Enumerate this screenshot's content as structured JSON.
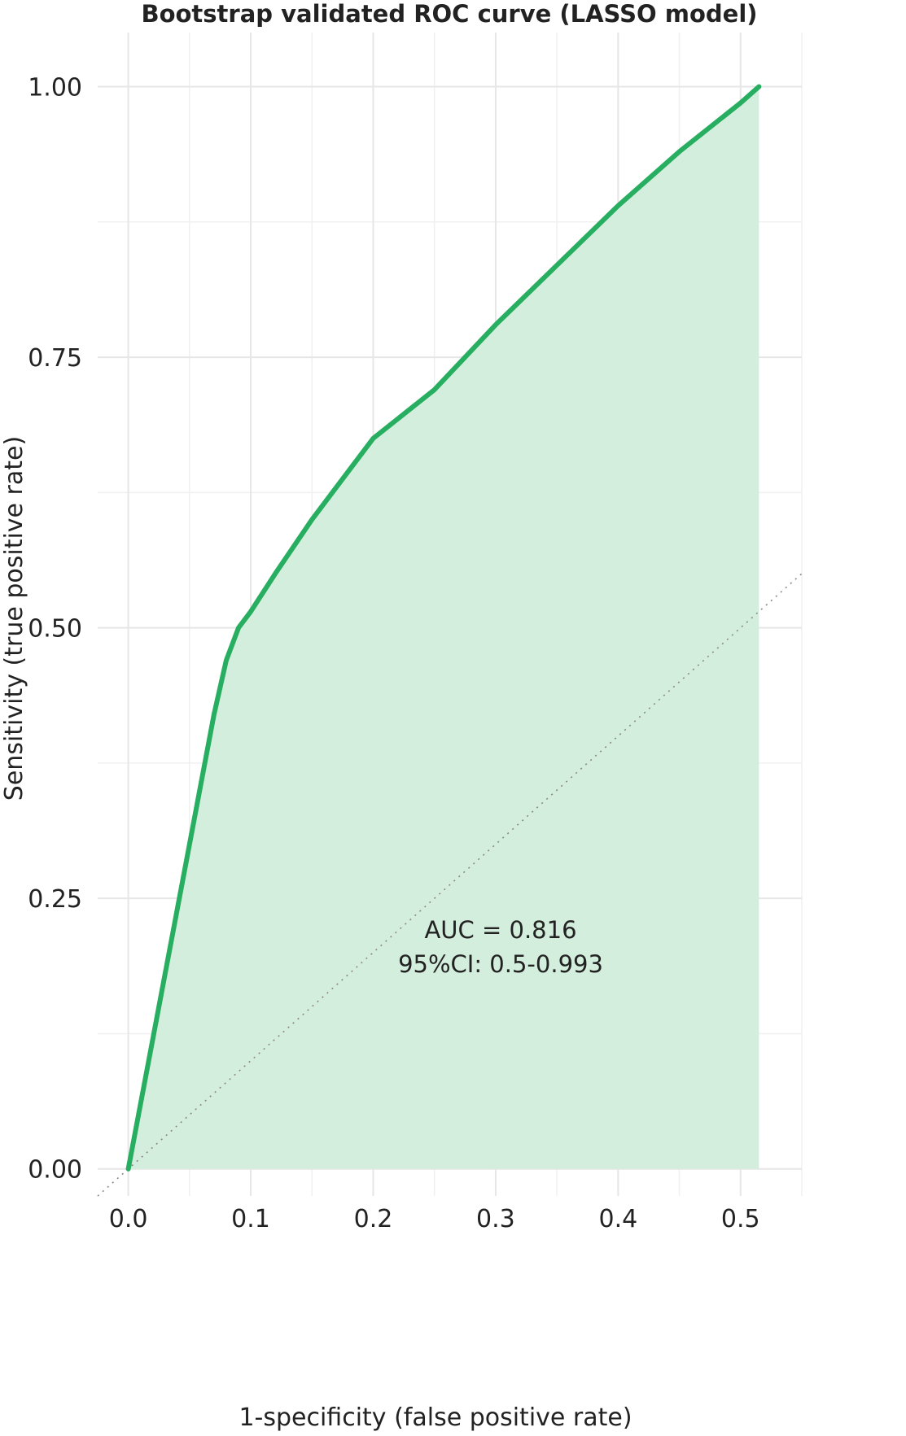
{
  "chart_data": {
    "type": "line",
    "title": "Bootstrap validated ROC curve (LASSO model)",
    "xlabel": "1-specificity (false positive rate)",
    "ylabel": "Sensitivity (true positive rate)",
    "xlim": [
      -0.025,
      0.55
    ],
    "ylim": [
      -0.025,
      1.05
    ],
    "x_ticks": [
      0.0,
      0.1,
      0.2,
      0.3,
      0.4,
      0.5
    ],
    "x_tick_labels": [
      "0.0",
      "0.1",
      "0.2",
      "0.3",
      "0.4",
      "0.5"
    ],
    "y_ticks": [
      0.0,
      0.25,
      0.5,
      0.75,
      1.0
    ],
    "y_tick_labels": [
      "0.00",
      "0.25",
      "0.50",
      "0.75",
      "1.00"
    ],
    "grid": true,
    "legend": "none",
    "series": [
      {
        "x": [
          0.0,
          0.01,
          0.02,
          0.03,
          0.04,
          0.05,
          0.06,
          0.07,
          0.08,
          0.09,
          0.1,
          0.12,
          0.15,
          0.18,
          0.2,
          0.25,
          0.3,
          0.35,
          0.4,
          0.45,
          0.5,
          0.515
        ],
        "y": [
          0.0,
          0.06,
          0.12,
          0.18,
          0.24,
          0.3,
          0.36,
          0.42,
          0.47,
          0.5,
          0.515,
          0.55,
          0.6,
          0.645,
          0.675,
          0.72,
          0.78,
          0.835,
          0.89,
          0.94,
          0.985,
          1.0
        ],
        "color": "#27ae60",
        "fill": "#d4eedd"
      }
    ],
    "reference_line": {
      "x": [
        -0.025,
        0.55
      ],
      "y": [
        -0.025,
        0.55
      ],
      "style": "dotted",
      "color": "#888888"
    },
    "annotations": [
      "AUC = 0.816",
      "95%CI: 0.5-0.993"
    ]
  }
}
